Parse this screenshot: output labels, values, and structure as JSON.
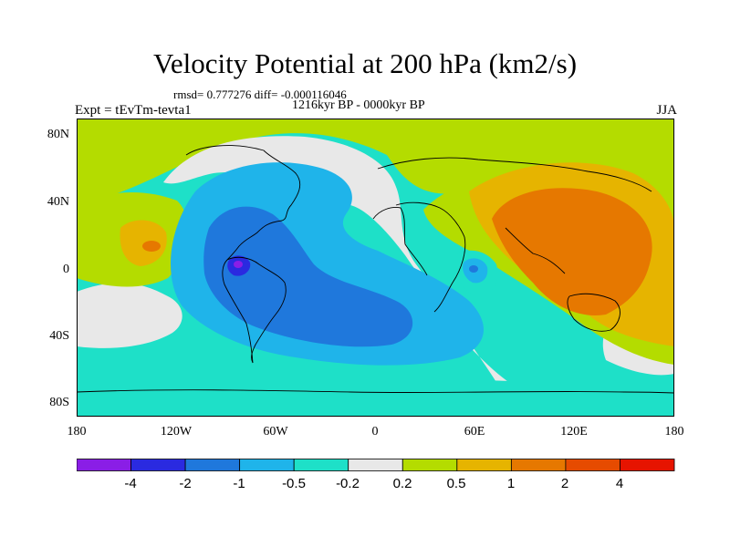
{
  "title": "Velocity Potential at 200 hPa (km2/s)",
  "stats_line": "rmsd= 0.777276 diff= -0.000116046",
  "period": "1216kyr BP - 0000kyr BP",
  "experiment": "Expt = tEvTm-tevta1",
  "season": "JJA",
  "axes": {
    "y_ticks": [
      "80N",
      "40N",
      "0",
      "40S",
      "80S"
    ],
    "x_ticks": [
      "180",
      "120W",
      "60W",
      "0",
      "60E",
      "120E",
      "180"
    ]
  },
  "colorbar": {
    "labels": [
      "-4",
      "-2",
      "-1",
      "-0.5",
      "-0.2",
      "0.2",
      "0.5",
      "1",
      "2",
      "4"
    ],
    "colors": [
      "#8a1ee6",
      "#2a2ae0",
      "#1f78dc",
      "#1fb4ea",
      "#1ee0c8",
      "#e8e8e8",
      "#b4dc00",
      "#e6b400",
      "#e67800",
      "#e64b00",
      "#e61400"
    ]
  },
  "chart_data": {
    "type": "heatmap",
    "title": "Velocity Potential at 200 hPa (km2/s)",
    "xlim": [
      -180,
      180
    ],
    "ylim": [
      -90,
      90
    ],
    "levels": [
      -4,
      -2,
      -1,
      -0.5,
      -0.2,
      0.2,
      0.5,
      1,
      2,
      4
    ],
    "features": [
      {
        "name": "strong negative center",
        "lon": -80,
        "lat": 3,
        "value": -3
      },
      {
        "name": "positive center",
        "lon": 110,
        "lat": 15,
        "value": 1.5
      },
      {
        "name": "north pacific weak positive",
        "lon": -155,
        "lat": 10,
        "value": 1
      }
    ]
  }
}
